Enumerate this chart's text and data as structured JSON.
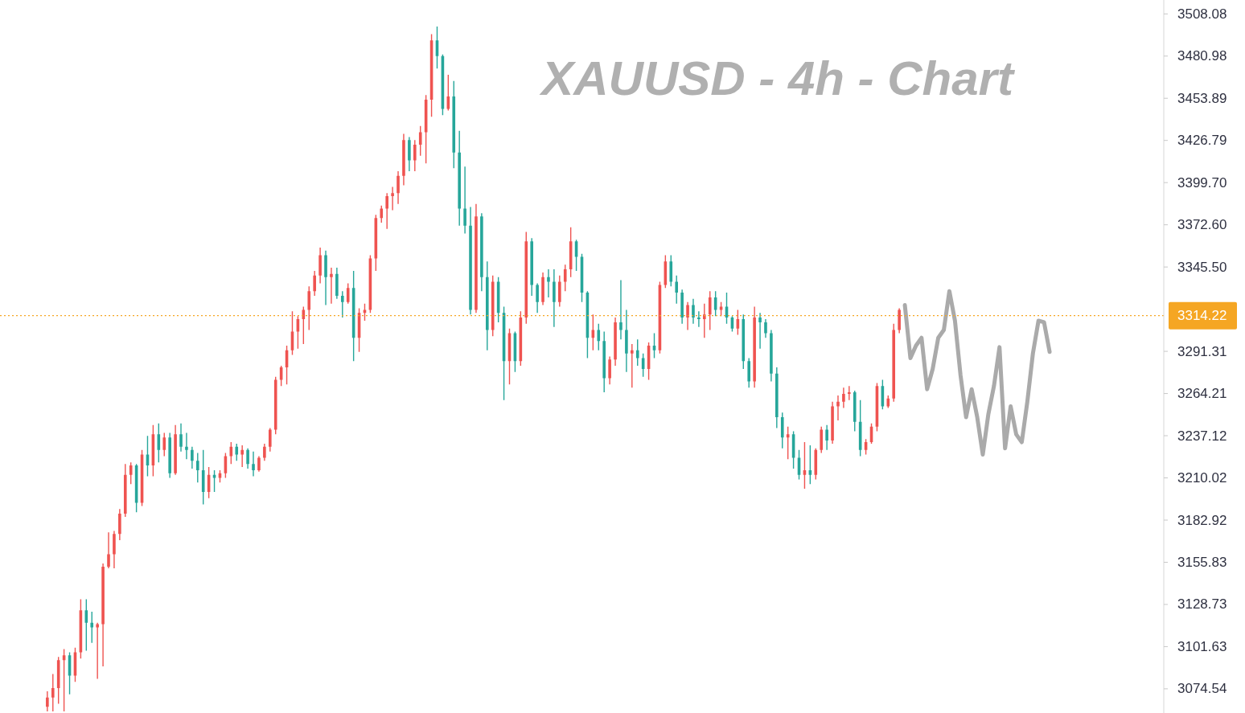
{
  "chart_data": {
    "type": "candlestick",
    "title": "XAUUSD - 4h - Chart",
    "categories": [
      null,
      null,
      null,
      null,
      null,
      null,
      null,
      null,
      null,
      null,
      null,
      null,
      null,
      null,
      null,
      null,
      null,
      null,
      null,
      null,
      null,
      null,
      null,
      null,
      null,
      null,
      null,
      null,
      null,
      null,
      null,
      null,
      null,
      null,
      null,
      null,
      null,
      null,
      null,
      null,
      null,
      null,
      null,
      null,
      null,
      null,
      null,
      null,
      null,
      null,
      null,
      null,
      null,
      null,
      null,
      null,
      null,
      null,
      null,
      null,
      null,
      null,
      null,
      null,
      null,
      null,
      null,
      null,
      null,
      null,
      null,
      null,
      null,
      null,
      null,
      null,
      null,
      null,
      null,
      null,
      null,
      null,
      null,
      null,
      null,
      null,
      null,
      null,
      null,
      null,
      null,
      null,
      null,
      null,
      null,
      null,
      null,
      null,
      null,
      null,
      null,
      null,
      null,
      null,
      null,
      null,
      null,
      null,
      null,
      null,
      null,
      null,
      null,
      null,
      null,
      null,
      null,
      null,
      null,
      null,
      null,
      null,
      null,
      null,
      null,
      null,
      null,
      null,
      null,
      null,
      null,
      null,
      null,
      null,
      null,
      null,
      null,
      null,
      null,
      null,
      null,
      null,
      null,
      null,
      null,
      null,
      null,
      null,
      null,
      null,
      null,
      null,
      null,
      null,
      null,
      null,
      null,
      null,
      null,
      null,
      null,
      null,
      null,
      null,
      null,
      null,
      null,
      null,
      null,
      null,
      null,
      null,
      null,
      null,
      null,
      null,
      null,
      null,
      null,
      null,
      null,
      null,
      null,
      null,
      null,
      null,
      null,
      null,
      null,
      null,
      null,
      null,
      null,
      null,
      null,
      null,
      null,
      null,
      null,
      null,
      null,
      null,
      null,
      null,
      null,
      null,
      null,
      null,
      null
    ],
    "ohlc": [
      null,
      null,
      null,
      null,
      null,
      null,
      null,
      null,
      [
        3063,
        3073,
        3060,
        3069
      ],
      [
        3069,
        3084,
        3060,
        3075
      ],
      [
        3075,
        3095,
        3065,
        3093
      ],
      [
        3093,
        3100,
        3060,
        3096
      ],
      [
        3096,
        3098,
        3071,
        3083
      ],
      [
        3083,
        3101,
        3079,
        3098
      ],
      [
        3098,
        3132,
        3094,
        3125
      ],
      [
        3125,
        3132,
        3099,
        3117
      ],
      [
        3117,
        3124,
        3104,
        3114
      ],
      [
        3114,
        3117,
        3081,
        3116
      ],
      [
        3116,
        3155,
        3089,
        3153
      ],
      [
        3153,
        3175,
        3152,
        3161
      ],
      [
        3161,
        3176,
        3152,
        3174
      ],
      [
        3174,
        3190,
        3170,
        3187
      ],
      [
        3187,
        3219,
        3185,
        3212
      ],
      [
        3212,
        3220,
        3206,
        3218
      ],
      [
        3218,
        3219,
        3188,
        3194
      ],
      [
        3194,
        3228,
        3192,
        3225
      ],
      [
        3225,
        3237,
        3211,
        3218
      ],
      [
        3218,
        3244,
        3211,
        3238
      ],
      [
        3238,
        3245,
        3220,
        3228
      ],
      [
        3228,
        3239,
        3224,
        3236
      ],
      [
        3236,
        3239,
        3210,
        3213
      ],
      [
        3213,
        3244,
        3212,
        3238
      ],
      [
        3238,
        3245,
        3227,
        3230
      ],
      [
        3230,
        3239,
        3222,
        3228
      ],
      [
        3228,
        3230,
        3216,
        3221
      ],
      [
        3221,
        3226,
        3207,
        3215
      ],
      [
        3215,
        3228,
        3193,
        3201
      ],
      [
        3201,
        3217,
        3197,
        3212
      ],
      [
        3212,
        3215,
        3201,
        3210
      ],
      [
        3210,
        3215,
        3207,
        3213
      ],
      [
        3213,
        3226,
        3210,
        3224
      ],
      [
        3224,
        3233,
        3219,
        3230
      ],
      [
        3230,
        3232,
        3221,
        3225
      ],
      [
        3225,
        3231,
        3217,
        3228
      ],
      [
        3228,
        3229,
        3216,
        3219
      ],
      [
        3219,
        3227,
        3211,
        3215
      ],
      [
        3215,
        3224,
        3214,
        3223
      ],
      [
        3223,
        3232,
        3221,
        3230
      ],
      [
        3230,
        3242,
        3227,
        3241
      ],
      [
        3241,
        3275,
        3238,
        3273
      ],
      [
        3273,
        3282,
        3269,
        3281
      ],
      [
        3281,
        3295,
        3270,
        3292
      ],
      [
        3292,
        3317,
        3289,
        3304
      ],
      [
        3304,
        3314,
        3293,
        3312
      ],
      [
        3312,
        3320,
        3296,
        3318
      ],
      [
        3318,
        3333,
        3305,
        3330
      ],
      [
        3330,
        3343,
        3327,
        3340
      ],
      [
        3340,
        3358,
        3335,
        3353
      ],
      [
        3353,
        3356,
        3321,
        3339
      ],
      [
        3339,
        3345,
        3322,
        3341
      ],
      [
        3341,
        3345,
        3325,
        3327
      ],
      [
        3327,
        3330,
        3313,
        3323
      ],
      [
        3323,
        3335,
        3322,
        3332
      ],
      [
        3332,
        3343,
        3285,
        3300
      ],
      [
        3300,
        3319,
        3291,
        3316
      ],
      [
        3316,
        3322,
        3311,
        3318
      ],
      [
        3318,
        3353,
        3316,
        3351
      ],
      [
        3351,
        3379,
        3343,
        3377
      ],
      [
        3377,
        3385,
        3374,
        3383
      ],
      [
        3383,
        3393,
        3370,
        3391
      ],
      [
        3391,
        3397,
        3382,
        3393
      ],
      [
        3393,
        3407,
        3386,
        3404
      ],
      [
        3404,
        3431,
        3398,
        3427
      ],
      [
        3427,
        3429,
        3407,
        3414
      ],
      [
        3414,
        3427,
        3407,
        3424
      ],
      [
        3424,
        3436,
        3417,
        3432
      ],
      [
        3432,
        3456,
        3412,
        3453
      ],
      [
        3453,
        3495,
        3442,
        3491
      ],
      [
        3491,
        3500,
        3473,
        3481
      ],
      [
        3481,
        3482,
        3443,
        3447
      ],
      [
        3447,
        3469,
        3446,
        3455
      ],
      [
        3455,
        3465,
        3409,
        3419
      ],
      [
        3419,
        3433,
        3372,
        3383
      ],
      [
        3383,
        3410,
        3367,
        3372
      ],
      [
        3372,
        3384,
        3315,
        3318
      ],
      [
        3318,
        3386,
        3316,
        3378
      ],
      [
        3378,
        3380,
        3330,
        3339
      ],
      [
        3339,
        3349,
        3292,
        3305
      ],
      [
        3305,
        3340,
        3301,
        3336
      ],
      [
        3336,
        3339,
        3310,
        3316
      ],
      [
        3316,
        3320,
        3260,
        3285
      ],
      [
        3285,
        3306,
        3270,
        3303
      ],
      [
        3303,
        3304,
        3278,
        3285
      ],
      [
        3285,
        3317,
        3282,
        3313
      ],
      [
        3313,
        3368,
        3309,
        3362
      ],
      [
        3362,
        3364,
        3327,
        3334
      ],
      [
        3334,
        3335,
        3316,
        3323
      ],
      [
        3323,
        3342,
        3321,
        3339
      ],
      [
        3339,
        3344,
        3326,
        3336
      ],
      [
        3336,
        3344,
        3307,
        3323
      ],
      [
        3323,
        3340,
        3320,
        3336
      ],
      [
        3336,
        3347,
        3330,
        3344
      ],
      [
        3344,
        3371,
        3339,
        3362
      ],
      [
        3362,
        3363,
        3343,
        3352
      ],
      [
        3352,
        3354,
        3323,
        3329
      ],
      [
        3329,
        3330,
        3287,
        3300
      ],
      [
        3300,
        3315,
        3292,
        3305
      ],
      [
        3305,
        3309,
        3292,
        3298
      ],
      [
        3298,
        3304,
        3265,
        3274
      ],
      [
        3274,
        3288,
        3270,
        3286
      ],
      [
        3286,
        3313,
        3282,
        3310
      ],
      [
        3310,
        3337,
        3299,
        3305
      ],
      [
        3305,
        3318,
        3278,
        3290
      ],
      [
        3290,
        3296,
        3268,
        3292
      ],
      [
        3292,
        3299,
        3282,
        3287
      ],
      [
        3287,
        3290,
        3275,
        3280
      ],
      [
        3280,
        3297,
        3273,
        3295
      ],
      [
        3295,
        3303,
        3287,
        3292
      ],
      [
        3292,
        3336,
        3290,
        3334
      ],
      [
        3334,
        3353,
        3332,
        3349
      ],
      [
        3349,
        3353,
        3333,
        3336
      ],
      [
        3336,
        3340,
        3322,
        3329
      ],
      [
        3329,
        3331,
        3309,
        3313
      ],
      [
        3313,
        3323,
        3305,
        3321
      ],
      [
        3321,
        3325,
        3309,
        3313
      ],
      [
        3313,
        3317,
        3307,
        3312
      ],
      [
        3312,
        3322,
        3300,
        3315
      ],
      [
        3315,
        3330,
        3305,
        3326
      ],
      [
        3326,
        3330,
        3314,
        3318
      ],
      [
        3318,
        3323,
        3314,
        3320
      ],
      [
        3320,
        3329,
        3309,
        3313
      ],
      [
        3313,
        3314,
        3304,
        3306
      ],
      [
        3306,
        3318,
        3302,
        3312
      ],
      [
        3312,
        3315,
        3280,
        3285
      ],
      [
        3285,
        3287,
        3268,
        3272
      ],
      [
        3272,
        3320,
        3268,
        3313
      ],
      [
        3313,
        3316,
        3293,
        3310
      ],
      [
        3310,
        3312,
        3300,
        3303
      ],
      [
        3303,
        3305,
        3272,
        3277
      ],
      [
        3277,
        3281,
        3242,
        3249
      ],
      [
        3249,
        3252,
        3229,
        3236
      ],
      [
        3236,
        3243,
        3222,
        3238
      ],
      [
        3238,
        3240,
        3216,
        3223
      ],
      [
        3223,
        3228,
        3209,
        3212
      ],
      [
        3212,
        3233,
        3203,
        3215
      ],
      [
        3215,
        3231,
        3206,
        3212
      ],
      [
        3212,
        3229,
        3209,
        3228
      ],
      [
        3228,
        3243,
        3226,
        3241
      ],
      [
        3241,
        3244,
        3228,
        3234
      ],
      [
        3234,
        3259,
        3232,
        3256
      ],
      [
        3256,
        3263,
        3247,
        3259
      ],
      [
        3259,
        3268,
        3255,
        3264
      ],
      [
        3264,
        3269,
        3260,
        3265
      ],
      [
        3265,
        3266,
        3240,
        3246
      ],
      [
        3246,
        3260,
        3224,
        3228
      ],
      [
        3228,
        3235,
        3225,
        3233
      ],
      [
        3233,
        3245,
        3232,
        3243
      ],
      [
        3243,
        3271,
        3240,
        3269
      ],
      [
        3269,
        3273,
        3254,
        3256
      ],
      [
        3256,
        3263,
        3255,
        3261
      ],
      [
        3261,
        3309,
        3259,
        3305
      ],
      [
        3305,
        3319,
        3303,
        3318
      ],
      null,
      null,
      null,
      null,
      null,
      null,
      null,
      null,
      null,
      null,
      null,
      null,
      null,
      null,
      null,
      null,
      null,
      null,
      null,
      null,
      null,
      null,
      null,
      null,
      null,
      null,
      null,
      null,
      null,
      null,
      null,
      null,
      null,
      null,
      null,
      null,
      null,
      null,
      null,
      null,
      null,
      null,
      null,
      null,
      null,
      null,
      null
    ],
    "colors": [
      null,
      null,
      null,
      null,
      null,
      null,
      null,
      null,
      "#ef5350",
      "#ef5350",
      "#ef5350",
      "#ef5350",
      "#26a69a",
      "#ef5350",
      "#ef5350",
      "#26a69a",
      "#26a69a",
      "#ef5350",
      "#ef5350",
      "#ef5350",
      "#ef5350",
      "#ef5350",
      "#ef5350",
      "#ef5350",
      "#26a69a",
      "#ef5350",
      "#26a69a",
      "#ef5350",
      "#26a69a",
      "#ef5350",
      "#26a69a",
      "#ef5350",
      "#26a69a",
      "#26a69a",
      "#26a69a",
      "#26a69a",
      "#26a69a",
      "#ef5350",
      "#26a69a",
      "#ef5350",
      "#ef5350",
      "#ef5350",
      "#26a69a",
      "#ef5350",
      "#26a69a",
      "#26a69a",
      "#ef5350",
      "#ef5350",
      "#ef5350",
      "#ef5350",
      "#ef5350",
      "#ef5350",
      "#ef5350",
      "#ef5350",
      "#ef5350",
      "#ef5350",
      "#ef5350",
      "#ef5350",
      "#26a69a",
      "#ef5350",
      "#26a69a",
      "#26a69a",
      "#ef5350",
      "#26a69a",
      "#ef5350",
      "#ef5350",
      "#ef5350",
      "#ef5350",
      "#ef5350",
      "#ef5350",
      "#ef5350",
      "#ef5350",
      "#ef5350",
      "#26a69a",
      "#ef5350",
      "#ef5350",
      "#ef5350",
      "#ef5350",
      "#26a69a",
      "#26a69a",
      "#ef5350",
      "#26a69a",
      "#26a69a",
      "#26a69a",
      "#26a69a",
      "#ef5350",
      "#26a69a",
      "#26a69a",
      "#ef5350",
      "#26a69a",
      "#26a69a",
      "#ef5350",
      "#26a69a",
      "#ef5350",
      "#ef5350",
      "#26a69a",
      "#26a69a",
      "#ef5350",
      "#26a69a",
      "#26a69a",
      "#ef5350",
      "#ef5350",
      "#ef5350",
      "#26a69a",
      "#26a69a",
      "#26a69a",
      "#ef5350",
      "#26a69a",
      "#26a69a",
      "#ef5350",
      "#ef5350",
      "#26a69a",
      "#26a69a",
      "#ef5350",
      "#26a69a",
      "#26a69a",
      "#ef5350",
      "#26a69a",
      "#ef5350",
      "#ef5350",
      "#26a69a",
      "#26a69a",
      "#26a69a",
      "#ef5350",
      "#26a69a",
      "#26a69a",
      "#ef5350",
      "#ef5350",
      "#26a69a",
      "#ef5350",
      "#26a69a",
      "#26a69a",
      "#ef5350",
      "#26a69a",
      "#26a69a",
      "#ef5350",
      "#26a69a",
      "#26a69a",
      "#26a69a",
      "#26a69a",
      "#26a69a",
      "#ef5350",
      "#26a69a",
      "#26a69a",
      "#ef5350",
      "#26a69a",
      "#ef5350",
      "#ef5350",
      "#26a69a",
      "#ef5350",
      "#ef5350",
      "#ef5350",
      "#ef5350",
      "#26a69a",
      "#26a69a",
      "#ef5350",
      "#ef5350",
      "#ef5350",
      "#26a69a",
      "#ef5350",
      "#ef5350",
      "#ef5350",
      null,
      null,
      null,
      null,
      null,
      null,
      null,
      null,
      null,
      null,
      null,
      null,
      null,
      null,
      null,
      null,
      null,
      null,
      null,
      null,
      null,
      null,
      null,
      null,
      null,
      null,
      null,
      null,
      null,
      null,
      null,
      null,
      null,
      null,
      null,
      null,
      null,
      null,
      null,
      null,
      null,
      null,
      null,
      null,
      null,
      null,
      null
    ],
    "series": [
      {
        "type": "line",
        "color": "#aaaaaa",
        "values": [
          null,
          null,
          null,
          null,
          null,
          null,
          null,
          null,
          null,
          null,
          null,
          null,
          null,
          null,
          null,
          null,
          null,
          null,
          null,
          null,
          null,
          null,
          null,
          null,
          null,
          null,
          null,
          null,
          null,
          null,
          null,
          null,
          null,
          null,
          null,
          null,
          null,
          null,
          null,
          null,
          null,
          null,
          null,
          null,
          null,
          null,
          null,
          null,
          null,
          null,
          null,
          null,
          null,
          null,
          null,
          null,
          null,
          null,
          null,
          null,
          null,
          null,
          null,
          null,
          null,
          null,
          null,
          null,
          null,
          null,
          null,
          null,
          null,
          null,
          null,
          null,
          null,
          null,
          null,
          null,
          null,
          null,
          null,
          null,
          null,
          null,
          null,
          null,
          null,
          null,
          null,
          null,
          null,
          null,
          null,
          null,
          null,
          null,
          null,
          null,
          null,
          null,
          null,
          null,
          null,
          null,
          null,
          null,
          null,
          null,
          null,
          null,
          null,
          null,
          null,
          null,
          null,
          null,
          null,
          null,
          null,
          null,
          null,
          null,
          null,
          null,
          null,
          null,
          null,
          null,
          null,
          null,
          null,
          null,
          null,
          null,
          null,
          null,
          null,
          null,
          null,
          null,
          null,
          null,
          null,
          null,
          null,
          null,
          null,
          null,
          null,
          null,
          null,
          null,
          null,
          null,
          null,
          null,
          null,
          null,
          null,
          null,
          3321,
          3287,
          3295,
          3300,
          3267,
          3280,
          3300,
          3305,
          3330,
          3311,
          3276,
          3249,
          3267,
          3249,
          3225,
          3251,
          3269,
          3294,
          3229,
          3256,
          3238,
          3233,
          3259,
          3290,
          3311,
          3310,
          3291,
          null,
          null,
          null,
          null,
          null,
          null,
          null,
          null,
          null,
          null,
          null,
          null,
          null,
          null,
          null,
          null,
          null,
          null,
          null,
          null
        ]
      }
    ],
    "ylim": [
      3059,
      3517
    ],
    "yticks": [
      3074.54,
      3101.63,
      3128.73,
      3155.83,
      3182.92,
      3210.02,
      3237.12,
      3264.21,
      3291.31,
      {
        "value": 3345.5,
        "label": "3345.50"
      },
      {
        "value": 3372.6,
        "label": "3372.60"
      },
      {
        "value": 3399.7,
        "label": "3399.70"
      },
      3426.79,
      3453.89,
      3480.98,
      3508.08
    ],
    "ref_lines": [
      {
        "axis": "y",
        "value": 3314.22,
        "label": "3314.22",
        "color": "#f5a623",
        "line_style": "dotted"
      }
    ],
    "tick_labels": "y"
  }
}
